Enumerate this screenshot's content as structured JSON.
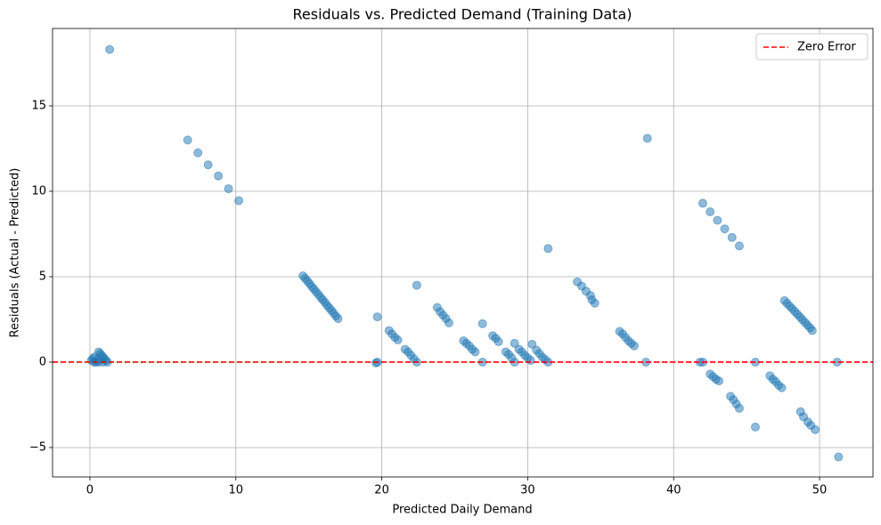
{
  "chart_data": {
    "type": "scatter",
    "title": "Residuals vs. Predicted Demand (Training Data)",
    "x_label": "Predicted Daily Demand",
    "y_label": "Residuals (Actual - Predicted)",
    "color": "#1f77b4",
    "x": [
      0.1,
      0.2,
      0.3,
      0.3,
      0.4,
      0.5,
      0.6,
      0.6,
      0.7,
      0.8,
      0.9,
      0.9,
      1.0,
      1.1,
      1.2,
      1.35,
      6.7,
      7.4,
      8.1,
      8.8,
      9.5,
      10.2,
      14.6,
      14.75,
      14.9,
      15.05,
      15.2,
      15.35,
      15.5,
      15.65,
      15.8,
      15.95,
      16.1,
      16.25,
      16.4,
      16.55,
      16.7,
      16.85,
      17.0,
      19.7,
      19.7,
      19.6,
      20.5,
      20.7,
      20.9,
      21.1,
      21.6,
      21.8,
      22.0,
      22.2,
      22.4,
      22.4,
      23.8,
      24.0,
      24.2,
      24.4,
      24.6,
      25.6,
      25.8,
      26.0,
      26.2,
      26.4,
      26.9,
      26.9,
      27.6,
      27.8,
      28.0,
      28.5,
      28.7,
      28.9,
      29.1,
      29.1,
      29.4,
      29.6,
      29.8,
      30.0,
      30.2,
      30.3,
      30.6,
      30.8,
      31.0,
      31.2,
      31.4,
      31.4,
      33.4,
      33.7,
      34.0,
      34.3,
      34.6,
      34.4,
      36.3,
      36.5,
      36.7,
      36.9,
      37.1,
      37.3,
      38.1,
      38.2,
      41.8,
      42.0,
      42.0,
      42.5,
      43.0,
      43.5,
      44.0,
      44.5,
      42.5,
      42.7,
      42.9,
      43.1,
      43.9,
      44.1,
      44.3,
      44.5,
      45.6,
      45.6,
      46.6,
      46.8,
      47.0,
      47.2,
      47.4,
      47.6,
      47.77,
      47.95,
      48.12,
      48.3,
      48.47,
      48.65,
      48.82,
      49.0,
      49.17,
      49.35,
      49.5,
      48.7,
      48.9,
      49.2,
      49.4,
      49.7,
      51.2,
      51.3
    ],
    "values": [
      0.1,
      0.2,
      0.3,
      0,
      0,
      0.1,
      0.6,
      0,
      0.5,
      0.4,
      0.3,
      0,
      0.2,
      0.1,
      0,
      18.3,
      13.0,
      12.25,
      11.55,
      10.9,
      10.15,
      9.45,
      5.05,
      4.9,
      4.75,
      4.6,
      4.43,
      4.28,
      4.12,
      3.97,
      3.8,
      3.65,
      3.5,
      3.33,
      3.18,
      3.02,
      2.87,
      2.7,
      2.55,
      2.65,
      0,
      -0.05,
      1.85,
      1.65,
      1.45,
      1.3,
      0.75,
      0.6,
      0.4,
      0.2,
      0,
      4.5,
      3.2,
      2.95,
      2.75,
      2.55,
      2.3,
      1.25,
      1.1,
      0.95,
      0.75,
      0.6,
      2.25,
      0,
      1.55,
      1.4,
      1.2,
      0.6,
      0.45,
      0.25,
      0,
      1.1,
      0.75,
      0.6,
      0.4,
      0.25,
      0.1,
      1.05,
      0.7,
      0.5,
      0.3,
      0.15,
      0,
      6.65,
      4.7,
      4.45,
      4.15,
      3.9,
      3.45,
      3.65,
      1.8,
      1.65,
      1.45,
      1.25,
      1.1,
      0.95,
      0,
      13.1,
      0,
      9.3,
      0,
      8.8,
      8.3,
      7.8,
      7.3,
      6.8,
      -0.7,
      -0.85,
      -1.0,
      -1.1,
      -2.0,
      -2.2,
      -2.45,
      -2.7,
      -3.8,
      0,
      -0.8,
      -1.0,
      -1.15,
      -1.35,
      -1.5,
      3.6,
      3.44,
      3.28,
      3.13,
      2.97,
      2.81,
      2.65,
      2.49,
      2.33,
      2.17,
      2.01,
      1.85,
      -2.9,
      -3.2,
      -3.5,
      -3.7,
      -3.95,
      0,
      -5.55
    ],
    "xlim": [
      -2.56,
      53.66
    ],
    "ylim": [
      -6.72,
      19.53
    ],
    "xticks": [
      0,
      10,
      20,
      30,
      40,
      50
    ],
    "yticks": [
      {
        "value": -5,
        "label": "−5"
      },
      0,
      5,
      10,
      15
    ],
    "grid": true,
    "reference_line": {
      "y": 0,
      "label": "Zero Error",
      "color": "#ff0000"
    },
    "legend": "upper right"
  }
}
